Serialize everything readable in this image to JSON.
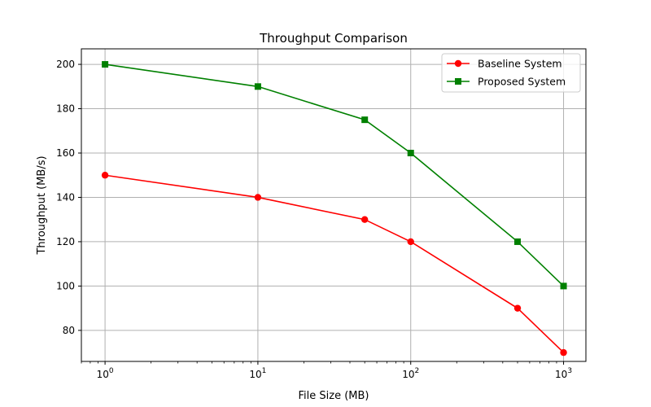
{
  "chart_data": {
    "type": "line",
    "title": "Throughput Comparison",
    "xlabel": "File Size (MB)",
    "ylabel": "Throughput (MB/s)",
    "xscale": "log",
    "xlim": [
      0.7,
      1400
    ],
    "ylim": [
      66,
      207
    ],
    "grid": true,
    "legend_position": "top-right",
    "x": [
      1,
      10,
      50,
      100,
      500,
      1000
    ],
    "x_ticks": [
      {
        "value": 1,
        "base": "10",
        "exp": "0"
      },
      {
        "value": 10,
        "base": "10",
        "exp": "1"
      },
      {
        "value": 100,
        "base": "10",
        "exp": "2"
      },
      {
        "value": 1000,
        "base": "10",
        "exp": "3"
      }
    ],
    "y_ticks": [
      80,
      100,
      120,
      140,
      160,
      180,
      200
    ],
    "series": [
      {
        "name": "Baseline System",
        "color": "#ff0000",
        "marker": "circle",
        "values": [
          150,
          140,
          130,
          120,
          90,
          70
        ]
      },
      {
        "name": "Proposed System",
        "color": "#008000",
        "marker": "square",
        "values": [
          200,
          190,
          175,
          160,
          120,
          100
        ]
      }
    ]
  }
}
